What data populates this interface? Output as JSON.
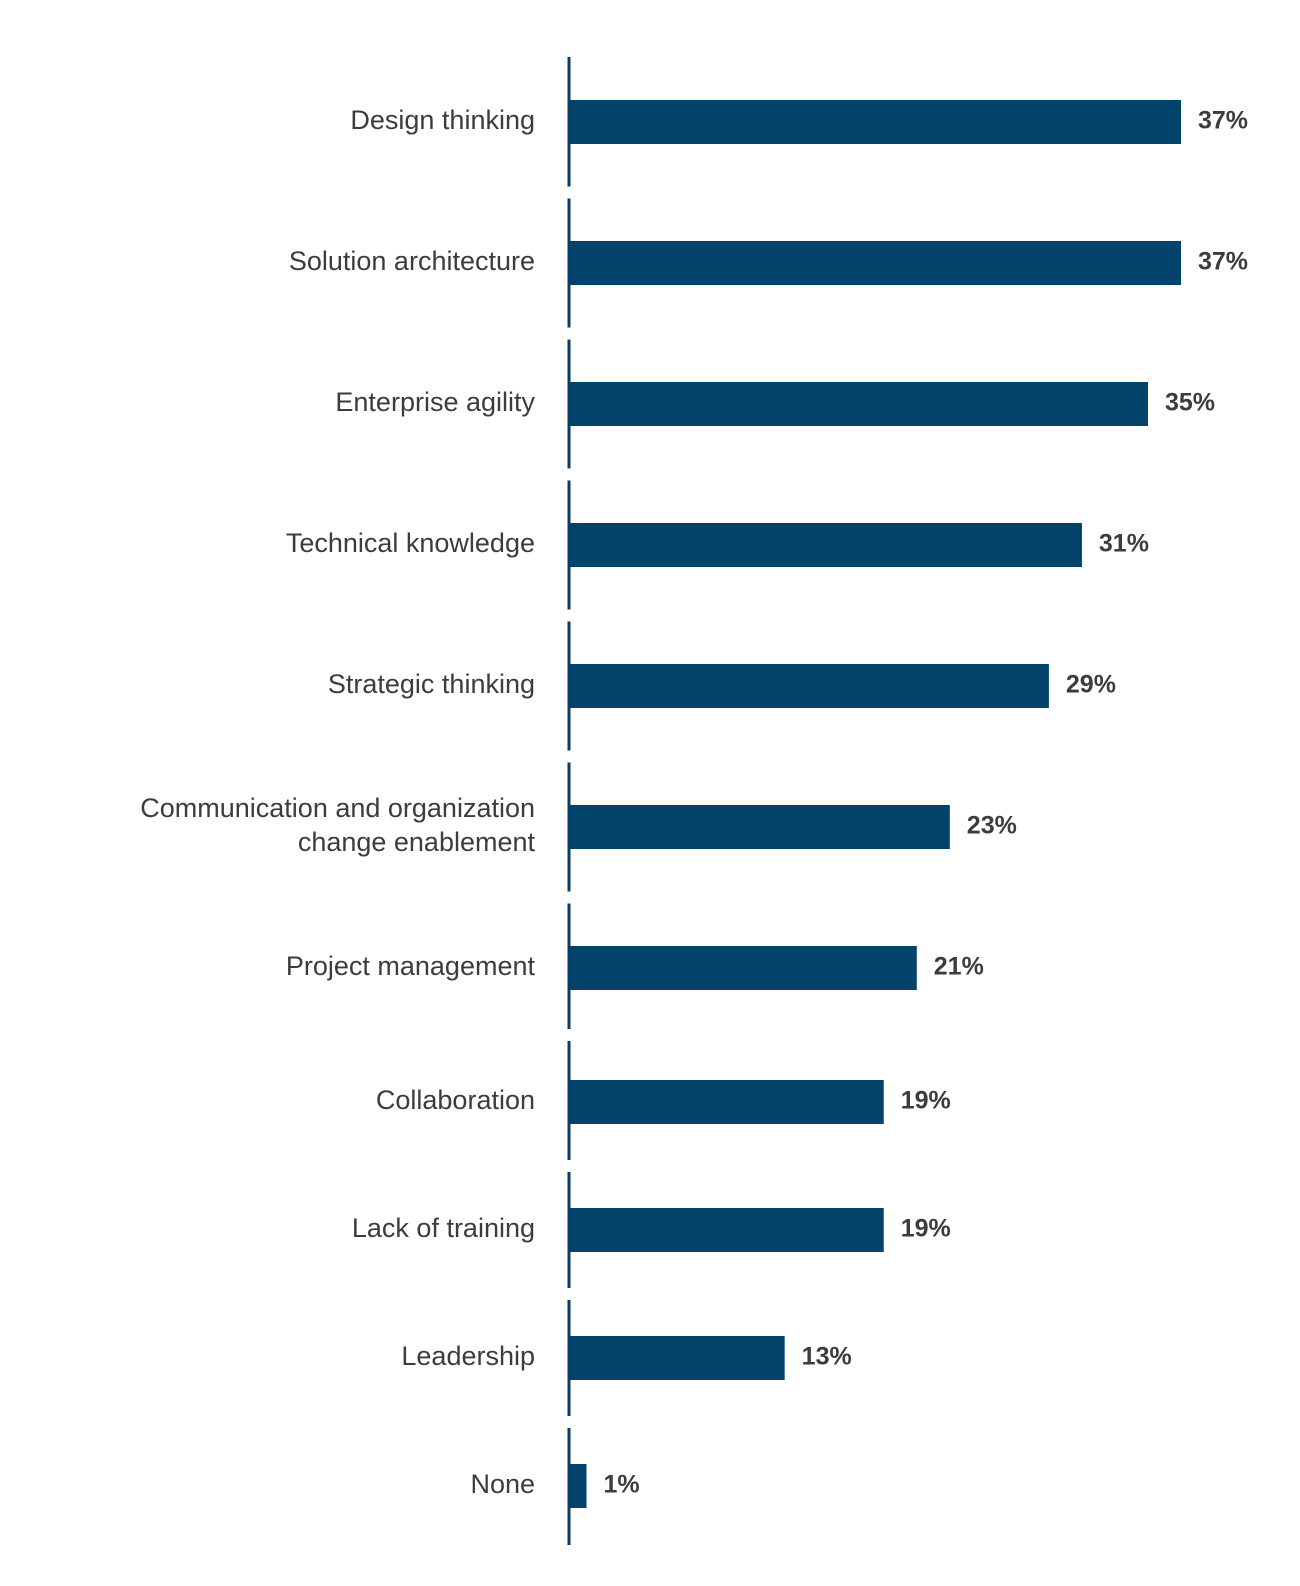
{
  "chart_data": {
    "type": "bar",
    "orientation": "horizontal",
    "title": "",
    "xlabel": "",
    "ylabel": "",
    "xlim": [
      0,
      37
    ],
    "grid": false,
    "legend": "none",
    "bar_color": "#03426B",
    "axis_color": "#0b3b60",
    "categories": [
      [
        "Design thinking"
      ],
      [
        "Solution architecture"
      ],
      [
        "Enterprise agility"
      ],
      [
        "Technical knowledge"
      ],
      [
        "Strategic thinking"
      ],
      [
        "Communication and organization",
        "change enablement"
      ],
      [
        "Project management"
      ],
      [
        "Collaboration"
      ],
      [
        "Lack of training"
      ],
      [
        "Leadership"
      ],
      [
        "None"
      ]
    ],
    "values": [
      37,
      37,
      35,
      31,
      29,
      23,
      21,
      19,
      19,
      13,
      1
    ],
    "value_labels": [
      "37%",
      "37%",
      "35%",
      "31%",
      "29%",
      "23%",
      "21%",
      "19%",
      "19%",
      "13%",
      "1%"
    ]
  }
}
